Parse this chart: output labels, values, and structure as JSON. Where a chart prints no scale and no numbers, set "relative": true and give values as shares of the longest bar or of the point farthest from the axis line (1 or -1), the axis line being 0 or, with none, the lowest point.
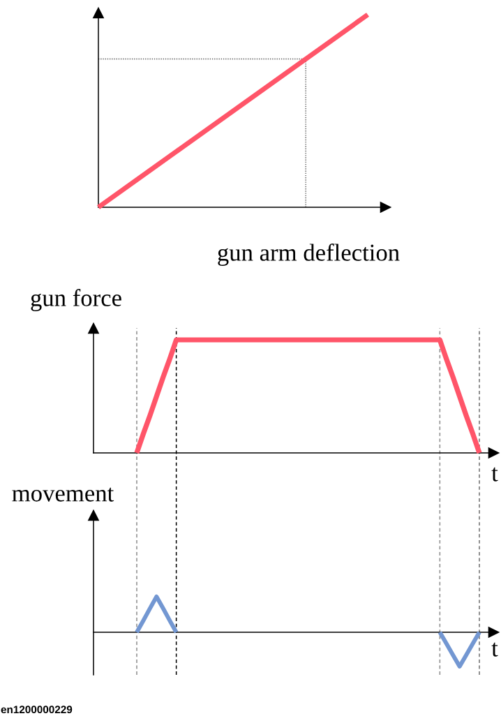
{
  "chart_data": [
    {
      "type": "line",
      "xlabel": "gun arm deflection",
      "relative": true,
      "categories": [
        null,
        null
      ],
      "series": [
        {
          "color": "#ff5569",
          "values": [
            0,
            1
          ]
        }
      ],
      "ref_lines": [
        {
          "axis": "y",
          "value": 0.77,
          "color": "#555555",
          "line_style": "dotted"
        }
      ]
    },
    {
      "type": "line",
      "ylabel": "gun force",
      "xlabel": "t",
      "relative": true,
      "categories": [
        null,
        null,
        null,
        null,
        null,
        null,
        null,
        null,
        null,
        null,
        null,
        null,
        null,
        null,
        null,
        null,
        null,
        null,
        null,
        null,
        null,
        null,
        null,
        null,
        null,
        null,
        null,
        null,
        null,
        null,
        null,
        null,
        null,
        null,
        null,
        null,
        null,
        null,
        null,
        null,
        null,
        null,
        null,
        null,
        null,
        null,
        null,
        null,
        null,
        null,
        null,
        null,
        null
      ],
      "series": [
        {
          "color": "#ff5569",
          "values": [
            0,
            0.17,
            0.33,
            0.5,
            0.67,
            0.83,
            1,
            1,
            1,
            1,
            1,
            1,
            1,
            1,
            1,
            1,
            1,
            1,
            1,
            1,
            1,
            1,
            1,
            1,
            1,
            1,
            1,
            1,
            1,
            1,
            1,
            1,
            1,
            1,
            1,
            1,
            1,
            1,
            1,
            1,
            1,
            1,
            1,
            1,
            1,
            1,
            1,
            0.83,
            0.67,
            0.5,
            0.33,
            0.17,
            0
          ]
        }
      ]
    },
    {
      "type": "line",
      "ylabel": "movement",
      "xlabel": "t",
      "relative": true,
      "categories": [
        null,
        null,
        null,
        null,
        null,
        null,
        null,
        null,
        null,
        null,
        null,
        null,
        null,
        null,
        null,
        null,
        null,
        null,
        null,
        null,
        null,
        null,
        null,
        null,
        null,
        null,
        null,
        null,
        null,
        null,
        null,
        null,
        null,
        null,
        null,
        null,
        null,
        null,
        null,
        null,
        null,
        null,
        null,
        null,
        null,
        null,
        null,
        null,
        null,
        null,
        null,
        null,
        null
      ],
      "series": [
        {
          "color": "#7397d2",
          "values": [
            0,
            0.33,
            0.67,
            1,
            0.67,
            0.33,
            0,
            null,
            null,
            null,
            null,
            null,
            null,
            null,
            null,
            null,
            null,
            null,
            null,
            null,
            null,
            null,
            null,
            null,
            null,
            null,
            null,
            null,
            null,
            null,
            null,
            null,
            null,
            null,
            null,
            null,
            null,
            null,
            null,
            null,
            null,
            null,
            null,
            null,
            null,
            null,
            0,
            -0.32,
            -0.64,
            -0.96,
            -0.64,
            -0.32,
            0
          ]
        }
      ],
      "annotations": [
        "en1200000229"
      ]
    }
  ]
}
